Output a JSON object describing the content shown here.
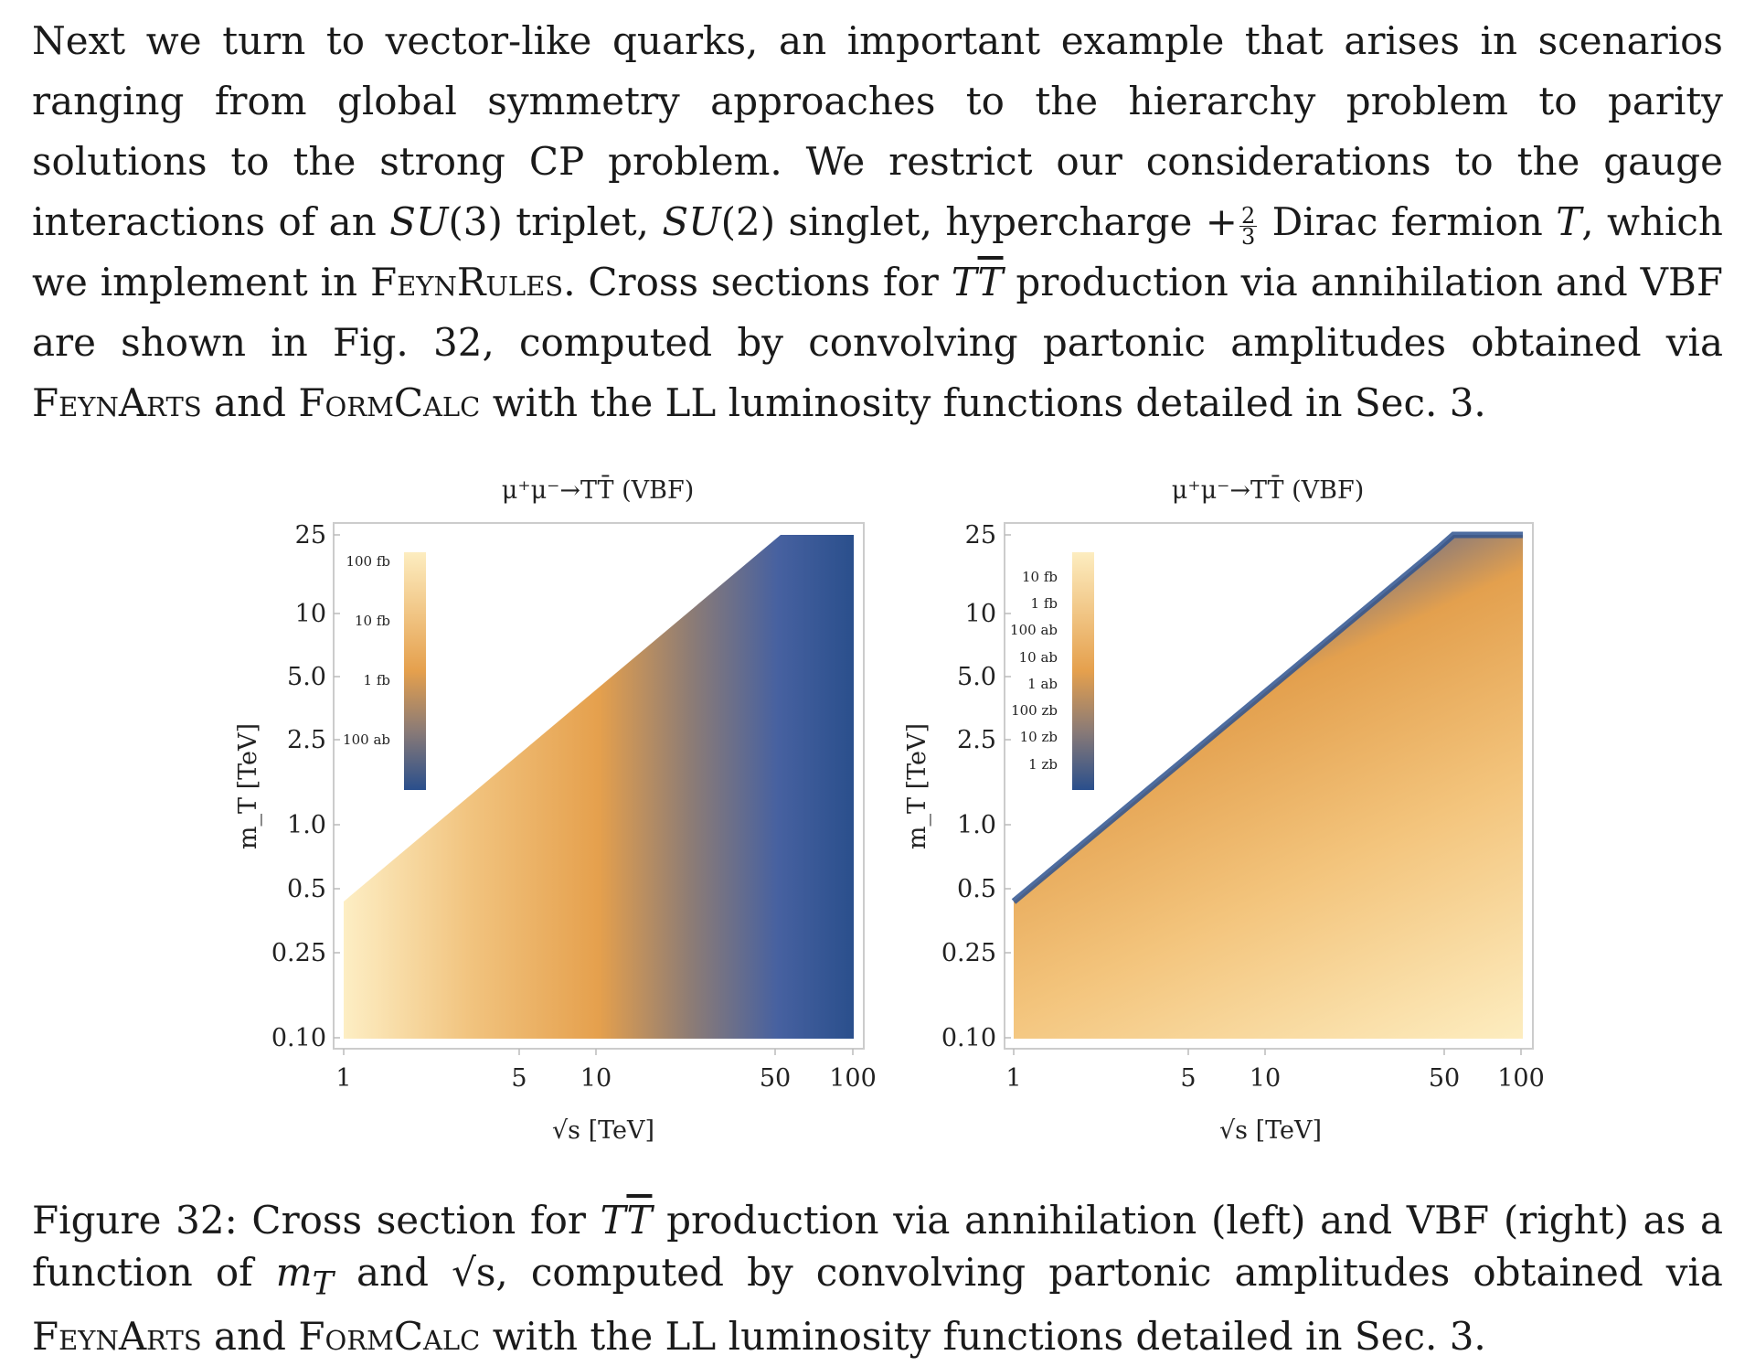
{
  "paragraph": {
    "t1": "Next we turn to vector-like quarks, an important example that arises in scenarios ranging from global symmetry approaches to the hierarchy problem to parity solutions to the strong CP problem. We restrict our considerations to the gauge interactions of an ",
    "su3": "SU",
    "su3_arg": "(3)",
    "t2": " triplet, ",
    "su2": "SU",
    "su2_arg": "(2)",
    "t3": " singlet, hypercharge +",
    "frac_num": "2",
    "frac_den": "3",
    "t4": " Dirac fermion ",
    "T": "T",
    "t5": ", which we implement in ",
    "feynrules": "FeynRules",
    "t6": ". Cross sections for ",
    "TT1": "T",
    "TT2": "T",
    "t7": " production via annihilation and VBF are shown in Fig. 32, computed by convolving partonic amplitudes obtained via ",
    "feynarts": "FeynArts",
    "t8": " and ",
    "formcalc": "FormCalc",
    "t9": " with the LL luminosity functions detailed in Sec. 3."
  },
  "chart_data": [
    {
      "type": "heatmap",
      "title": "μ⁺μ⁻→TT̄ (VBF)",
      "xlabel": "√s [TeV]",
      "ylabel": "m_T [TeV]",
      "x_scale": "log",
      "y_scale": "log",
      "xlim": [
        1,
        100
      ],
      "ylim": [
        0.1,
        25
      ],
      "x_ticks": [
        "1",
        "5",
        "10",
        "50",
        "100"
      ],
      "y_ticks": [
        "0.10",
        "0.25",
        "0.5",
        "1.0",
        "2.5",
        "5.0",
        "10",
        "25"
      ],
      "kinematic_boundary": "m_T < √s / 2",
      "colorbar": {
        "labels": [
          "100 fb",
          "10 fb",
          "1 fb",
          "100 ab"
        ],
        "colormap": [
          "#fdebb6",
          "#e7a24f",
          "#2f5292"
        ]
      },
      "gradient_direction": "decreasing with √s"
    },
    {
      "type": "heatmap",
      "title": "μ⁺μ⁻→TT̄ (VBF)",
      "xlabel": "√s [TeV]",
      "ylabel": "m_T [TeV]",
      "x_scale": "log",
      "y_scale": "log",
      "xlim": [
        1,
        100
      ],
      "ylim": [
        0.1,
        25
      ],
      "x_ticks": [
        "1",
        "5",
        "10",
        "50",
        "100"
      ],
      "y_ticks": [
        "0.10",
        "0.25",
        "0.5",
        "1.0",
        "2.5",
        "5.0",
        "10",
        "25"
      ],
      "kinematic_boundary": "m_T < √s / 2",
      "colorbar": {
        "labels": [
          "10 fb",
          "1 fb",
          "100 ab",
          "10 ab",
          "1 ab",
          "100 zb",
          "10 zb",
          "1 zb"
        ],
        "colormap": [
          "#fdebb6",
          "#e7a24f",
          "#2f5292"
        ]
      },
      "gradient_direction": "decreasing toward the kinematic edge"
    }
  ],
  "caption": {
    "t1": "Figure 32: Cross section for ",
    "TT1": "T",
    "TT2": "T",
    "t2": " production via annihilation (left) and VBF (right) as a function of ",
    "mT": "m",
    "mT_sub": "T",
    "t3": " and ",
    "sqrt_s": "√s",
    "t4": ", computed by convolving partonic amplitudes obtained via ",
    "feynarts": "FeynArts",
    "t5": " and ",
    "formcalc": "FormCalc",
    "t6": " with the LL luminosity functions detailed in Sec. 3."
  }
}
